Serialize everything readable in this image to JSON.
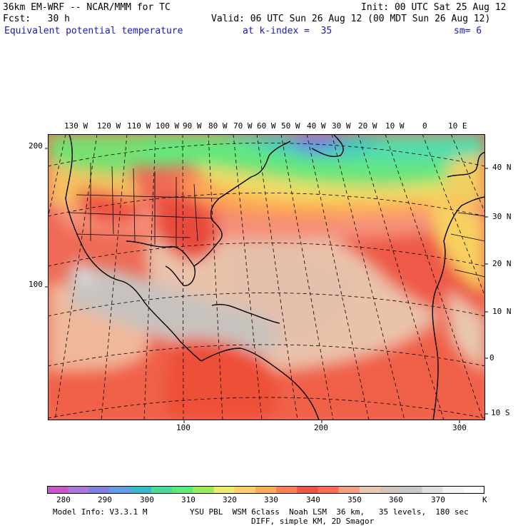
{
  "header": {
    "line1_left": "36km EM-WRF -- NCAR/MMM for TC",
    "line1_right": "Init: 00 UTC Sat 25 Aug 12",
    "line2_left": "Fcst:   30 h",
    "line2_right": "Valid: 06 UTC Sun 26 Aug 12 (00 MDT Sun 26 Aug 12)",
    "line3_field": "Equivalent potential temperature",
    "line3_level": "at k-index =  35",
    "line3_smooth": "sm= 6"
  },
  "map": {
    "lon_labels": [
      "130 W",
      "120 W",
      "110 W",
      "100 W",
      "90 W",
      "80 W",
      "70 W",
      "60 W",
      "50 W",
      "40 W",
      "30 W",
      "20 W",
      "10 W",
      "0",
      "10 E"
    ],
    "lat_labels": [
      "40 N",
      "30 N",
      "20 N",
      "10 N",
      "0",
      "10 S"
    ],
    "grid_y_labels": [
      "200",
      "100"
    ],
    "grid_x_labels": [
      "100",
      "200",
      "300"
    ]
  },
  "colorbar": {
    "colors": [
      "#cc55cc",
      "#aa77dd",
      "#7f7fe8",
      "#5f9fe8",
      "#33bbcc",
      "#44dd99",
      "#55ee77",
      "#99ee55",
      "#eeee66",
      "#ffcc66",
      "#ffaa55",
      "#ff7f55",
      "#ee5544",
      "#ff6a55",
      "#f4a080",
      "#e8c8b0",
      "#d0c4bc",
      "#c8c8c8",
      "#e0e0e0",
      "#f4f4f4",
      "#ffffff"
    ],
    "labels": [
      "280",
      "290",
      "300",
      "310",
      "320",
      "330",
      "340",
      "350",
      "360",
      "370"
    ],
    "unit": "K"
  },
  "footer": {
    "line1_left": "Model Info: V3.3.1 M",
    "line1_right": "YSU PBL  WSM 6class  Noah LSM  36 km,   35 levels,  180 sec",
    "line2": "DIFF, simple KM, 2D Smagor"
  }
}
